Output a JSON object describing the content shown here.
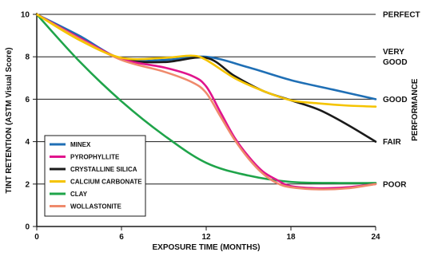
{
  "chart_data": {
    "type": "line",
    "xlabel": "EXPOSURE TIME (MONTHS)",
    "ylabel": "TINT RETENTION (ASTM Visual Score)",
    "right_axis_label": "PERFORMANCE",
    "xlim": [
      0,
      24
    ],
    "ylim": [
      0,
      10
    ],
    "x_ticks": [
      0,
      6,
      12,
      18,
      24
    ],
    "y_ticks": [
      0,
      2,
      4,
      6,
      8,
      10
    ],
    "grid": "horizontal",
    "legend_position": "bottom-left",
    "right_axis_ticks": [
      {
        "value": 10,
        "lines": [
          "PERFECT"
        ]
      },
      {
        "value": 8,
        "lines": [
          "VERY",
          "GOOD"
        ]
      },
      {
        "value": 6,
        "lines": [
          "GOOD"
        ]
      },
      {
        "value": 4,
        "lines": [
          "FAIR"
        ]
      },
      {
        "value": 2,
        "lines": [
          "POOR"
        ]
      }
    ],
    "series": [
      {
        "name": "MINEX",
        "color": "#1f6fb5",
        "points": [
          [
            0,
            10
          ],
          [
            3,
            9
          ],
          [
            6,
            7.9
          ],
          [
            9,
            7.85
          ],
          [
            12,
            8.0
          ],
          [
            15,
            7.5
          ],
          [
            18,
            6.9
          ],
          [
            21,
            6.45
          ],
          [
            24,
            6.0
          ]
        ]
      },
      {
        "name": "PYROPHYLLITE",
        "color": "#e0148c",
        "points": [
          [
            0,
            10
          ],
          [
            3,
            8.9
          ],
          [
            6,
            7.9
          ],
          [
            9,
            7.5
          ],
          [
            11,
            7.1
          ],
          [
            12,
            6.6
          ],
          [
            13,
            5.4
          ],
          [
            14,
            4.2
          ],
          [
            15,
            3.3
          ],
          [
            16,
            2.6
          ],
          [
            17,
            2.2
          ],
          [
            18,
            1.9
          ],
          [
            20,
            1.8
          ],
          [
            22,
            1.85
          ],
          [
            24,
            2.0
          ]
        ]
      },
      {
        "name": "CRYSTALLINE SILICA",
        "color": "#1a1a1a",
        "points": [
          [
            0,
            10
          ],
          [
            3,
            8.9
          ],
          [
            6,
            7.9
          ],
          [
            9,
            7.75
          ],
          [
            12,
            7.95
          ],
          [
            14,
            7.1
          ],
          [
            16,
            6.4
          ],
          [
            18,
            5.95
          ],
          [
            20,
            5.5
          ],
          [
            22,
            4.8
          ],
          [
            24,
            4.0
          ]
        ]
      },
      {
        "name": "CALCIUM CARBONATE",
        "color": "#f5c400",
        "points": [
          [
            0,
            10
          ],
          [
            3,
            8.8
          ],
          [
            6,
            7.95
          ],
          [
            9,
            7.95
          ],
          [
            11,
            8.05
          ],
          [
            12,
            7.85
          ],
          [
            14,
            7.0
          ],
          [
            16,
            6.4
          ],
          [
            18,
            5.95
          ],
          [
            20,
            5.8
          ],
          [
            22,
            5.7
          ],
          [
            24,
            5.65
          ]
        ]
      },
      {
        "name": "CLAY",
        "color": "#1fa44a",
        "points": [
          [
            0,
            10
          ],
          [
            3,
            7.8
          ],
          [
            6,
            5.9
          ],
          [
            9,
            4.3
          ],
          [
            12,
            3.0
          ],
          [
            15,
            2.4
          ],
          [
            18,
            2.1
          ],
          [
            21,
            2.05
          ],
          [
            24,
            2.05
          ]
        ]
      },
      {
        "name": "WOLLASTONITE",
        "color": "#ef8a6c",
        "points": [
          [
            0,
            10
          ],
          [
            3,
            8.85
          ],
          [
            6,
            7.85
          ],
          [
            9,
            7.3
          ],
          [
            11,
            6.8
          ],
          [
            12,
            6.3
          ],
          [
            13,
            5.2
          ],
          [
            14,
            4.1
          ],
          [
            15,
            3.2
          ],
          [
            16,
            2.5
          ],
          [
            17,
            2.05
          ],
          [
            18,
            1.85
          ],
          [
            20,
            1.75
          ],
          [
            22,
            1.8
          ],
          [
            24,
            2.0
          ]
        ]
      }
    ]
  }
}
